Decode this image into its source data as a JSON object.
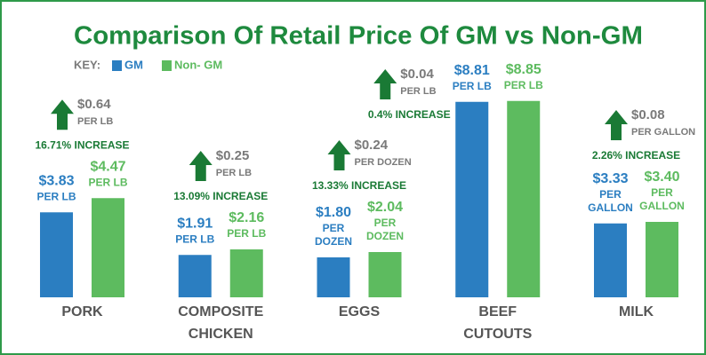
{
  "chart_data": {
    "type": "bar",
    "title": "Comparison Of Retail Price Of GM vs Non-GM",
    "key_label": "KEY:",
    "categories": [
      [
        "PORK"
      ],
      [
        "COMPOSITE",
        "CHICKEN"
      ],
      [
        "EGGS"
      ],
      [
        "BEEF",
        "CUTOUTS"
      ],
      [
        "MILK"
      ]
    ],
    "unit_labels": [
      [
        "PER LB"
      ],
      [
        "PER LB"
      ],
      [
        "PER",
        "DOZEN"
      ],
      [
        "PER LB"
      ],
      [
        "PER",
        "GALLON"
      ]
    ],
    "series": [
      {
        "name": "GM",
        "color": "#2b7ec1",
        "values": [
          3.83,
          1.91,
          1.8,
          8.81,
          3.33
        ],
        "value_labels": [
          "$3.83",
          "$1.91",
          "$1.80",
          "$8.81",
          "$3.33"
        ]
      },
      {
        "name": "Non- GM",
        "color": "#5dbb5f",
        "values": [
          4.47,
          2.16,
          2.04,
          8.85,
          3.4
        ],
        "value_labels": [
          "$4.47",
          "$2.16",
          "$2.04",
          "$8.85",
          "$3.40"
        ]
      }
    ],
    "difference_labels": [
      "$0.64",
      "$0.25",
      "$0.24",
      "$0.04",
      "$0.08"
    ],
    "difference_units": [
      "PER LB",
      "PER LB",
      "PER DOZEN",
      "PER LB",
      "PER GALLON"
    ],
    "increase_labels": [
      "16.71% INCREASE",
      "13.09% INCREASE",
      "13.33% INCREASE",
      "0.4% INCREASE",
      "2.26% INCREASE"
    ]
  }
}
